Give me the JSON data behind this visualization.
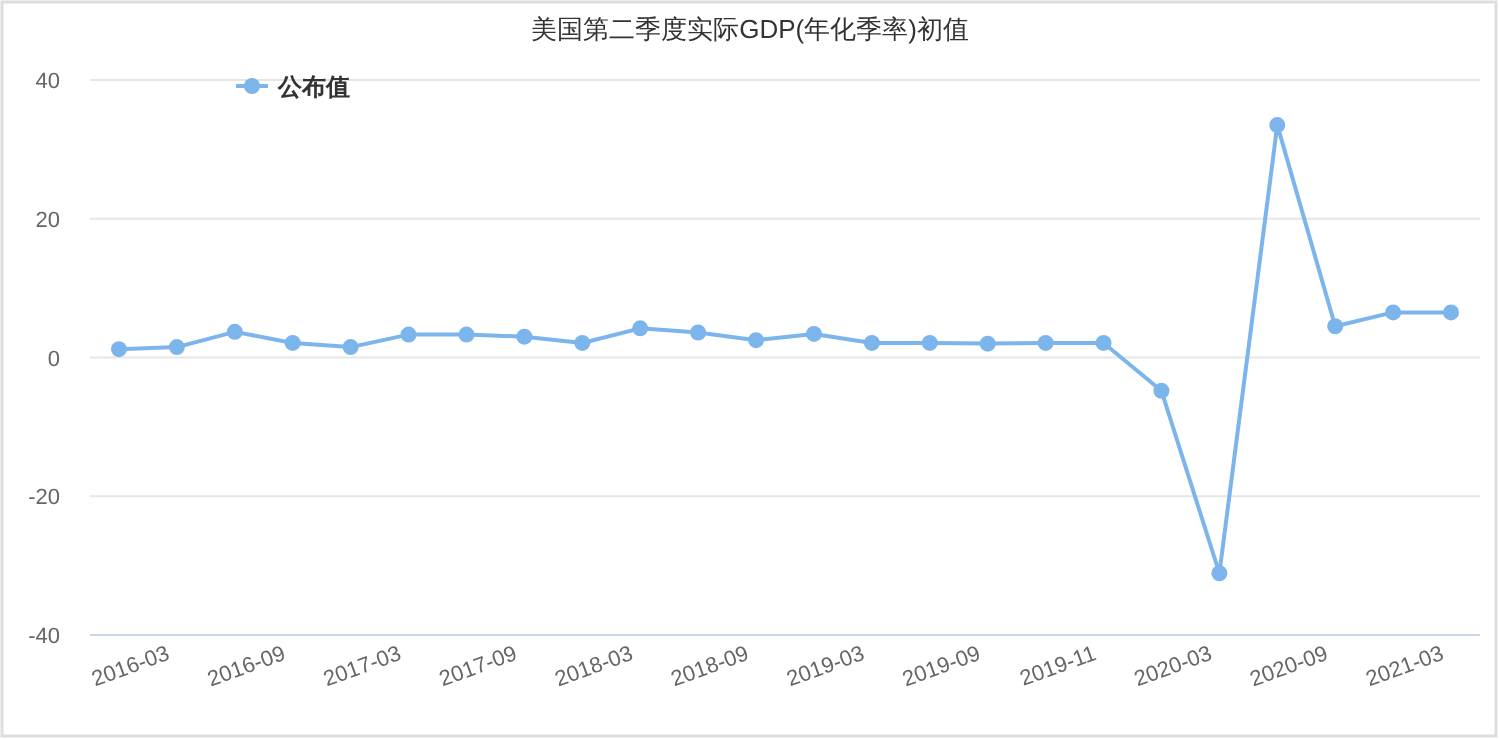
{
  "chart_data": {
    "type": "line",
    "title": "美国第二季度实际GDP(年化季率)初值",
    "categories": [
      null,
      "2016-03",
      null,
      "2016-09",
      null,
      "2017-03",
      null,
      "2017-09",
      null,
      "2018-03",
      null,
      "2018-09",
      null,
      "2019-03",
      null,
      "2019-09",
      null,
      "2019-11",
      null,
      "2020-03",
      null,
      "2020-09",
      null,
      "2021-03"
    ],
    "series": [
      {
        "name": "公布值",
        "color": "#7cb5ec",
        "values": [
          1.2,
          1.5,
          3.7,
          2.1,
          1.5,
          3.3,
          3.3,
          3.0,
          2.1,
          4.2,
          3.6,
          2.5,
          3.4,
          2.1,
          2.1,
          2.0,
          2.1,
          2.1,
          -4.8,
          -31.1,
          33.5,
          4.5,
          6.5,
          6.5
        ]
      }
    ],
    "ylim": [
      -40,
      40
    ],
    "yticks": [
      -40,
      -20,
      0,
      20,
      40
    ],
    "grid": "y",
    "legend": "top left",
    "marker": "circle",
    "line_style": "solid"
  }
}
